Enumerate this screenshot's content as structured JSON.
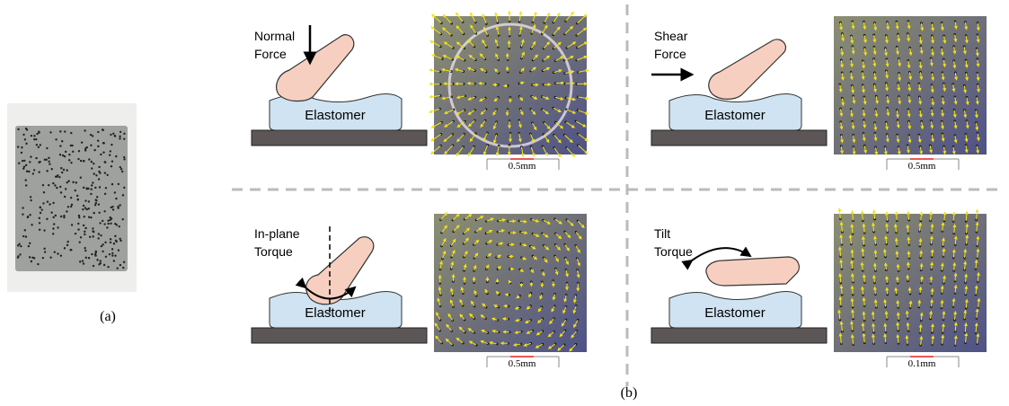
{
  "panel_a": {
    "caption": "(a)"
  },
  "panel_b": {
    "caption": "(b)",
    "cells": [
      {
        "force_label": [
          "Normal",
          "Force"
        ],
        "body_label": "Elastomer",
        "scale_label": "0.5mm"
      },
      {
        "force_label": [
          "Shear",
          "Force"
        ],
        "body_label": "Elastomer",
        "scale_label": "0.5mm"
      },
      {
        "force_label": [
          "In-plane",
          "Torque"
        ],
        "body_label": "Elastomer",
        "scale_label": "0.5mm"
      },
      {
        "force_label": [
          "Tilt",
          "Torque"
        ],
        "body_label": "Elastomer",
        "scale_label": "0.1mm"
      }
    ]
  }
}
